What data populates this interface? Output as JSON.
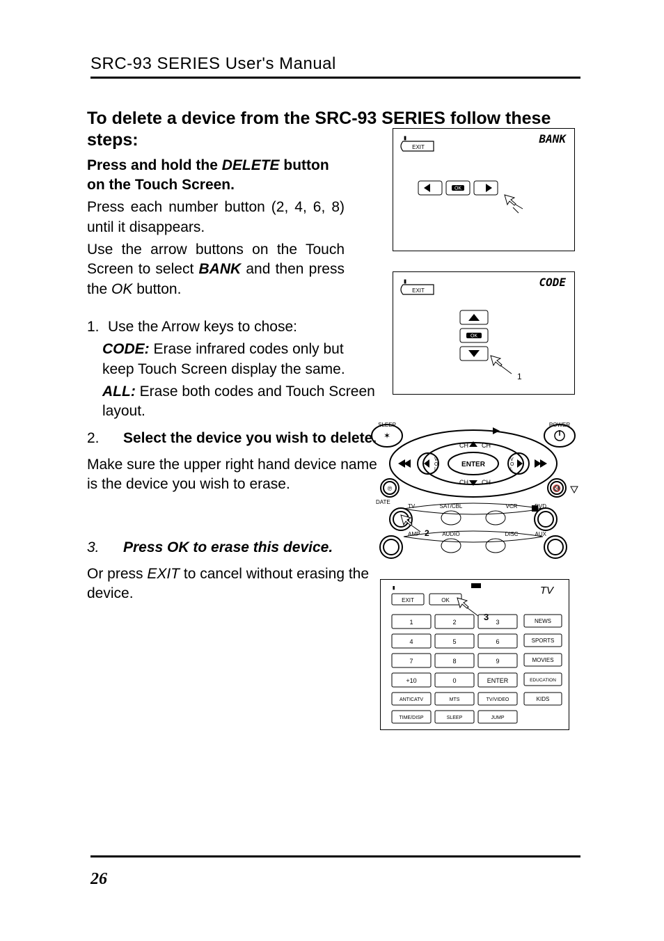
{
  "header": {
    "title": "SRC-93 SERIES User's Manual"
  },
  "footer": {
    "page_number": "26"
  },
  "section": {
    "heading": "To delete a device from the SRC-93 SERIES follow these steps:",
    "lead_part1": "Press and hold the ",
    "lead_delete": "DELETE",
    "lead_part2": " button on the Touch Screen.",
    "p1": "Press each number button (2, 4, 6, 8) until it disappears.",
    "p2a": "Use the arrow buttons on the Touch Screen to select ",
    "p2_bank": "BANK",
    "p2b": " and then press the ",
    "p2_ok": "OK",
    "p2c": " button.",
    "step1_num": "1.",
    "step1_text": "Use the Arrow keys to chose:",
    "code_label": "CODE:",
    "code_text": " Erase infrared codes only but keep Touch Screen display the same.",
    "all_label": "ALL:",
    "all_text": " Erase both codes and Touch Screen layout.",
    "step2_num": "2.",
    "step2_text": "Select the device you wish to delete.",
    "p3": "Make sure the upper right hand device name is the device you wish to erase.",
    "step3_num": "3.",
    "step3_text": "Press OK to erase this device.",
    "p4a": "Or press ",
    "p4_exit": "EXIT",
    "p4b": " to cancel without erasing the device."
  },
  "fig1": {
    "label_right": "BANK",
    "exit": "EXIT",
    "ok": "OK"
  },
  "fig2": {
    "label_right": "CODE",
    "exit": "EXIT",
    "ok": "OK",
    "tag": "1"
  },
  "remote": {
    "sleep": "SLEEP",
    "power": "POWER",
    "enter": "ENTER",
    "ch": "CH",
    "date": "DATE",
    "tv": "TV",
    "satcbl": "SAT/CBL",
    "vcr": "VCR",
    "dvd": "DVD",
    "amp": "AMP",
    "audio": "AUDIO",
    "disc": "DISC",
    "aux": "AUX",
    "num2": "2"
  },
  "keypad": {
    "tv": "TV",
    "exit": "EXIT",
    "ok": "OK",
    "nums": [
      "1",
      "2",
      "3",
      "4",
      "5",
      "6",
      "7",
      "8",
      "9",
      "+10",
      "0",
      "ENTER"
    ],
    "side": [
      "NEWS",
      "SPORTS",
      "MOVIES",
      "EDUCATION",
      "KIDS"
    ],
    "bottom": [
      "ANTICATV",
      "MTS",
      "TV/VIDEO",
      "TIME/DISP",
      "SLEEP",
      "JUMP"
    ],
    "three": "3"
  },
  "colors": {
    "text": "#000000",
    "bg": "#ffffff",
    "rule": "#000000"
  }
}
